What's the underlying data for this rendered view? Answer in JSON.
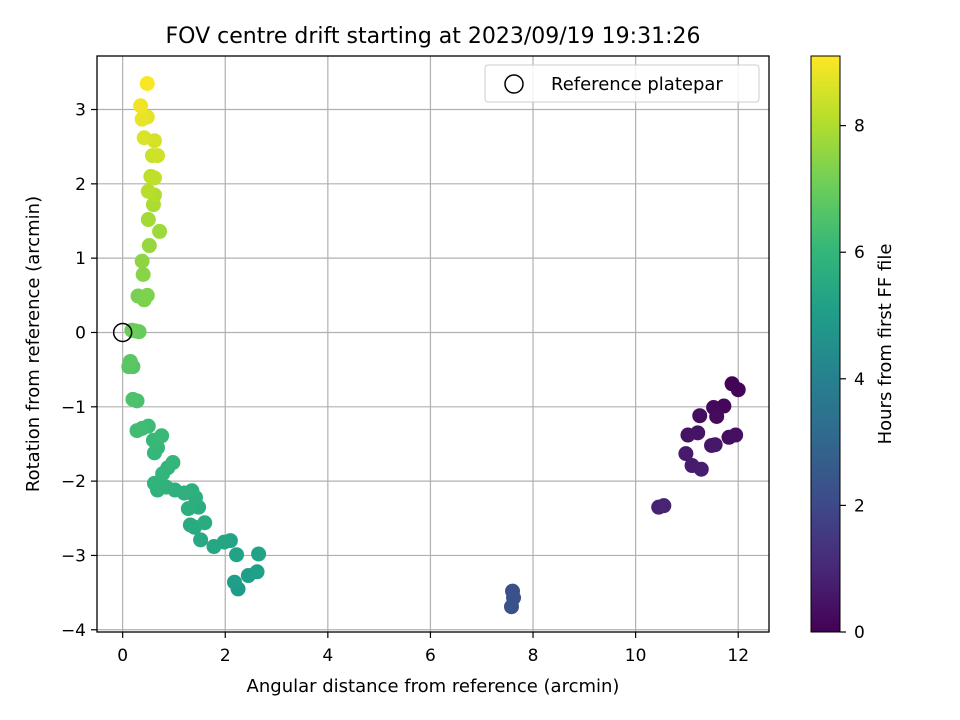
{
  "chart_data": {
    "type": "scatter",
    "title": "FOV centre drift starting at 2023/09/19 19:31:26",
    "xlabel": "Angular distance from reference (arcmin)",
    "ylabel": "Rotation from reference (arcmin)",
    "xlim": [
      -0.5,
      12.6
    ],
    "ylim": [
      -4.03,
      3.72
    ],
    "xticks": [
      0,
      2,
      4,
      6,
      8,
      10,
      12
    ],
    "yticks": [
      -4,
      -3,
      -2,
      -1,
      0,
      1,
      2,
      3
    ],
    "grid": true,
    "legend": {
      "placement": "upper right",
      "entries": [
        "Reference platepar"
      ]
    },
    "reference_point": {
      "x": 0,
      "y": 0,
      "label": "Reference platepar"
    },
    "colorbar": {
      "label": "Hours from first FF file",
      "colormap": "viridis",
      "range": [
        0,
        9.1
      ],
      "ticks": [
        0,
        2,
        4,
        6,
        8
      ]
    },
    "colors": {
      "viridis_stops": [
        "#440154",
        "#482878",
        "#3e4a89",
        "#31688e",
        "#26828e",
        "#1f9e89",
        "#35b779",
        "#6ece58",
        "#b5de2b",
        "#fde725"
      ],
      "reference_marker": "#000000",
      "grid": "#b0b0b0"
    },
    "points": [
      {
        "x": 11.88,
        "y": -0.69,
        "h": 0.05
      },
      {
        "x": 12.0,
        "y": -0.77,
        "h": 0.1
      },
      {
        "x": 11.72,
        "y": -0.99,
        "h": 0.15
      },
      {
        "x": 11.52,
        "y": -1.01,
        "h": 0.2
      },
      {
        "x": 11.58,
        "y": -1.13,
        "h": 0.25
      },
      {
        "x": 11.25,
        "y": -1.12,
        "h": 0.3
      },
      {
        "x": 11.82,
        "y": -1.41,
        "h": 0.35
      },
      {
        "x": 11.95,
        "y": -1.38,
        "h": 0.4
      },
      {
        "x": 11.02,
        "y": -1.38,
        "h": 0.45
      },
      {
        "x": 11.21,
        "y": -1.35,
        "h": 0.5
      },
      {
        "x": 11.48,
        "y": -1.52,
        "h": 0.55
      },
      {
        "x": 11.55,
        "y": -1.51,
        "h": 0.6
      },
      {
        "x": 10.98,
        "y": -1.63,
        "h": 0.65
      },
      {
        "x": 11.1,
        "y": -1.79,
        "h": 0.7
      },
      {
        "x": 11.28,
        "y": -1.84,
        "h": 0.75
      },
      {
        "x": 10.45,
        "y": -2.35,
        "h": 0.85
      },
      {
        "x": 10.55,
        "y": -2.33,
        "h": 0.9
      },
      {
        "x": 7.6,
        "y": -3.48,
        "h": 2.2
      },
      {
        "x": 7.62,
        "y": -3.57,
        "h": 2.25
      },
      {
        "x": 7.58,
        "y": -3.69,
        "h": 2.3
      },
      {
        "x": 2.25,
        "y": -3.45,
        "h": 5.0
      },
      {
        "x": 2.18,
        "y": -3.36,
        "h": 5.05
      },
      {
        "x": 2.45,
        "y": -3.27,
        "h": 5.1
      },
      {
        "x": 2.62,
        "y": -3.22,
        "h": 5.15
      },
      {
        "x": 2.65,
        "y": -2.98,
        "h": 5.2
      },
      {
        "x": 2.22,
        "y": -2.99,
        "h": 5.25
      },
      {
        "x": 2.1,
        "y": -2.8,
        "h": 5.3
      },
      {
        "x": 1.98,
        "y": -2.82,
        "h": 5.35
      },
      {
        "x": 1.78,
        "y": -2.88,
        "h": 5.4
      },
      {
        "x": 1.52,
        "y": -2.79,
        "h": 5.45
      },
      {
        "x": 1.4,
        "y": -2.62,
        "h": 5.5
      },
      {
        "x": 1.32,
        "y": -2.59,
        "h": 5.55
      },
      {
        "x": 1.6,
        "y": -2.56,
        "h": 5.6
      },
      {
        "x": 1.48,
        "y": -2.35,
        "h": 5.65
      },
      {
        "x": 1.28,
        "y": -2.37,
        "h": 5.7
      },
      {
        "x": 1.42,
        "y": -2.22,
        "h": 5.72
      },
      {
        "x": 1.35,
        "y": -2.13,
        "h": 5.75
      },
      {
        "x": 1.2,
        "y": -2.16,
        "h": 5.78
      },
      {
        "x": 1.02,
        "y": -2.12,
        "h": 5.8
      },
      {
        "x": 0.85,
        "y": -2.08,
        "h": 5.83
      },
      {
        "x": 0.68,
        "y": -2.12,
        "h": 5.86
      },
      {
        "x": 0.62,
        "y": -2.03,
        "h": 5.9
      },
      {
        "x": 0.78,
        "y": -1.9,
        "h": 5.93
      },
      {
        "x": 0.88,
        "y": -1.82,
        "h": 5.96
      },
      {
        "x": 0.98,
        "y": -1.75,
        "h": 6.0
      },
      {
        "x": 0.62,
        "y": -1.62,
        "h": 6.05
      },
      {
        "x": 0.68,
        "y": -1.55,
        "h": 6.08
      },
      {
        "x": 0.6,
        "y": -1.45,
        "h": 6.12
      },
      {
        "x": 0.76,
        "y": -1.39,
        "h": 6.15
      },
      {
        "x": 0.5,
        "y": -1.26,
        "h": 6.2
      },
      {
        "x": 0.38,
        "y": -1.29,
        "h": 6.25
      },
      {
        "x": 0.28,
        "y": -1.32,
        "h": 6.28
      },
      {
        "x": 0.28,
        "y": -0.92,
        "h": 6.45
      },
      {
        "x": 0.2,
        "y": -0.9,
        "h": 6.5
      },
      {
        "x": 0.2,
        "y": -0.46,
        "h": 6.65
      },
      {
        "x": 0.12,
        "y": -0.46,
        "h": 6.7
      },
      {
        "x": 0.15,
        "y": -0.39,
        "h": 6.72
      },
      {
        "x": 0.25,
        "y": 0.02,
        "h": 6.9
      },
      {
        "x": 0.32,
        "y": 0.01,
        "h": 6.95
      },
      {
        "x": 0.18,
        "y": 0.03,
        "h": 7.0
      },
      {
        "x": 0.3,
        "y": 0.49,
        "h": 7.2
      },
      {
        "x": 0.42,
        "y": 0.44,
        "h": 7.25
      },
      {
        "x": 0.48,
        "y": 0.5,
        "h": 7.3
      },
      {
        "x": 0.4,
        "y": 0.78,
        "h": 7.45
      },
      {
        "x": 0.38,
        "y": 0.96,
        "h": 7.55
      },
      {
        "x": 0.52,
        "y": 1.17,
        "h": 7.65
      },
      {
        "x": 0.72,
        "y": 1.36,
        "h": 7.75
      },
      {
        "x": 0.5,
        "y": 1.52,
        "h": 7.85
      },
      {
        "x": 0.6,
        "y": 1.72,
        "h": 7.95
      },
      {
        "x": 0.62,
        "y": 1.85,
        "h": 8.05
      },
      {
        "x": 0.5,
        "y": 1.9,
        "h": 8.1
      },
      {
        "x": 0.55,
        "y": 2.1,
        "h": 8.2
      },
      {
        "x": 0.62,
        "y": 2.08,
        "h": 8.25
      },
      {
        "x": 0.58,
        "y": 2.38,
        "h": 8.4
      },
      {
        "x": 0.68,
        "y": 2.38,
        "h": 8.45
      },
      {
        "x": 0.62,
        "y": 2.58,
        "h": 8.55
      },
      {
        "x": 0.42,
        "y": 2.62,
        "h": 8.6
      },
      {
        "x": 0.48,
        "y": 2.9,
        "h": 8.75
      },
      {
        "x": 0.38,
        "y": 2.87,
        "h": 8.8
      },
      {
        "x": 0.35,
        "y": 3.05,
        "h": 8.9
      },
      {
        "x": 0.48,
        "y": 3.35,
        "h": 9.05
      }
    ]
  }
}
